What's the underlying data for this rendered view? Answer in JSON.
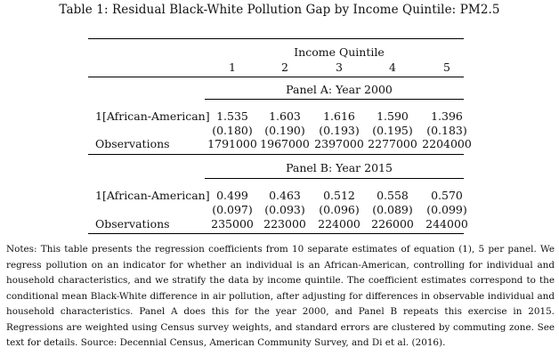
{
  "caption": "Table 1: Residual Black-White Pollution Gap by Income Quintile: PM2.5",
  "header": {
    "group": "Income Quintile",
    "columns": [
      "1",
      "2",
      "3",
      "4",
      "5"
    ]
  },
  "panels": [
    {
      "title": "Panel A: Year 2000",
      "row_label": "1[African-American]",
      "coefficients": [
        "1.535",
        "1.603",
        "1.616",
        "1.590",
        "1.396"
      ],
      "std_errors": [
        "(0.180)",
        "(0.190)",
        "(0.193)",
        "(0.195)",
        "(0.183)"
      ],
      "obs_label": "Observations",
      "observations": [
        "1791000",
        "1967000",
        "2397000",
        "2277000",
        "2204000"
      ]
    },
    {
      "title": "Panel B: Year 2015",
      "row_label": "1[African-American]",
      "coefficients": [
        "0.499",
        "0.463",
        "0.512",
        "0.558",
        "0.570"
      ],
      "std_errors": [
        "(0.097)",
        "(0.093)",
        "(0.096)",
        "(0.089)",
        "(0.099)"
      ],
      "obs_label": "Observations",
      "observations": [
        "235000",
        "223000",
        "224000",
        "226000",
        "244000"
      ]
    }
  ],
  "notes": "Notes: This table presents the regression coefficients from 10 separate estimates of equation (1), 5 per panel. We regress pollution on an indicator for whether an individual is an African-American, controlling for individual and household characteristics, and we stratify the data by income quintile. The coefficient estimates correspond to the conditional mean Black-White difference in air pollution, after adjusting for differences in observable individual and household characteristics. Panel A does this for the year 2000, and Panel B repeats this exercise in 2015. Regressions are weighted using Census survey weights, and standard errors are clustered by commuting zone. See text for details. Source: Decennial Census, American Community Survey, and Di et al. (2016)."
}
